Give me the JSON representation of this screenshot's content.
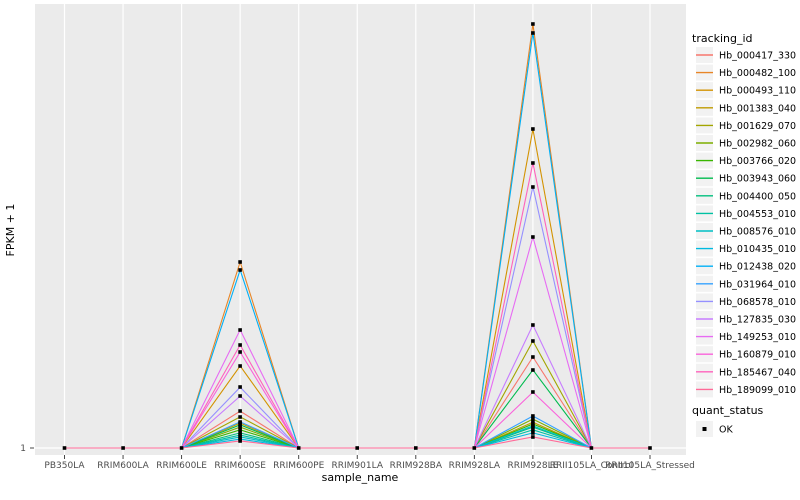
{
  "figure": {
    "background": "#FFFFFF",
    "panel_background": "#EBEBEB",
    "gridline_color": "#FFFFFF",
    "axis_text_color": "#4D4D4D",
    "axis_tick_color": "#333333",
    "point_color": "#000000",
    "legend_key_background": "#F2F2F2"
  },
  "chart_data": {
    "type": "line",
    "title": "",
    "xlabel": "sample_name",
    "ylabel": "FPKM + 1",
    "y_ticks": [
      "1"
    ],
    "y_axis_note": "only baseline tick '1' is labeled; series values stored as fraction of panel height above the y=1 baseline",
    "grid": "vertical white gridlines per sample on gray panel, horizontal gridline at y=1",
    "legend_position": "right",
    "marker": "small filled black square at every sample point",
    "categories": [
      "PB350LA",
      "RRIM600LA",
      "RRIM600LE",
      "RRIM600SE",
      "RRIM600PE",
      "RRIM901LA",
      "RRIM928BA",
      "RRIM928LA",
      "RRIM928LE",
      "RRII105LA_Control",
      "RRII105LA_Stressed"
    ],
    "series": [
      {
        "name": "Hb_000417_330",
        "color": "#F8766D",
        "values": [
          0,
          0,
          0,
          0.083,
          0,
          0,
          0,
          0,
          0.205,
          0,
          0
        ]
      },
      {
        "name": "Hb_000482_100",
        "color": "#E88526",
        "values": [
          0,
          0,
          0,
          0.419,
          0,
          0,
          0,
          0,
          0.955,
          0,
          0
        ]
      },
      {
        "name": "Hb_000493_110",
        "color": "#D39200",
        "values": [
          0,
          0,
          0,
          0.185,
          0,
          0,
          0,
          0,
          0.718,
          0,
          0
        ]
      },
      {
        "name": "Hb_001383_040",
        "color": "#C09B00",
        "values": [
          0,
          0,
          0,
          0.056,
          0,
          0,
          0,
          0,
          0.058,
          0,
          0
        ]
      },
      {
        "name": "Hb_001629_070",
        "color": "#A3A500",
        "values": [
          0,
          0,
          0,
          0.07,
          0,
          0,
          0,
          0,
          0.241,
          0,
          0
        ]
      },
      {
        "name": "Hb_002982_060",
        "color": "#7CAE00",
        "values": [
          0,
          0,
          0,
          0.047,
          0,
          0,
          0,
          0,
          0.065,
          0,
          0
        ]
      },
      {
        "name": "Hb_003766_020",
        "color": "#39B600",
        "values": [
          0,
          0,
          0,
          0.041,
          0,
          0,
          0,
          0,
          0.054,
          0,
          0
        ]
      },
      {
        "name": "Hb_003943_060",
        "color": "#00BB4E",
        "values": [
          0,
          0,
          0,
          0.052,
          0,
          0,
          0,
          0,
          0.176,
          0,
          0
        ]
      },
      {
        "name": "Hb_004400_050",
        "color": "#00BF7D",
        "values": [
          0,
          0,
          0,
          0.034,
          0,
          0,
          0,
          0,
          0.047,
          0,
          0
        ]
      },
      {
        "name": "Hb_004553_010",
        "color": "#00C1A3",
        "values": [
          0,
          0,
          0,
          0.029,
          0,
          0,
          0,
          0,
          0.041,
          0,
          0
        ]
      },
      {
        "name": "Hb_008576_010",
        "color": "#00BFC4",
        "values": [
          0,
          0,
          0,
          0.025,
          0,
          0,
          0,
          0,
          0.05,
          0,
          0
        ]
      },
      {
        "name": "Hb_010435_010",
        "color": "#00BAE0",
        "values": [
          0,
          0,
          0,
          0.02,
          0,
          0,
          0,
          0,
          0.034,
          0,
          0
        ]
      },
      {
        "name": "Hb_012438_020",
        "color": "#00B0F6",
        "values": [
          0,
          0,
          0,
          0.401,
          0,
          0,
          0,
          0,
          0.935,
          0,
          0
        ]
      },
      {
        "name": "Hb_031964_010",
        "color": "#35A2FF",
        "values": [
          0,
          0,
          0,
          0.059,
          0,
          0,
          0,
          0,
          0.072,
          0,
          0
        ]
      },
      {
        "name": "Hb_068578_010",
        "color": "#9590FF",
        "values": [
          0,
          0,
          0,
          0.137,
          0,
          0,
          0,
          0,
          0.588,
          0,
          0
        ]
      },
      {
        "name": "Hb_127835_030",
        "color": "#C77CFF",
        "values": [
          0,
          0,
          0,
          0.117,
          0,
          0,
          0,
          0,
          0.277,
          0,
          0
        ]
      },
      {
        "name": "Hb_149253_010",
        "color": "#E76BF3",
        "values": [
          0,
          0,
          0,
          0.266,
          0,
          0,
          0,
          0,
          0.475,
          0,
          0
        ]
      },
      {
        "name": "Hb_160879_010",
        "color": "#FA62DB",
        "values": [
          0,
          0,
          0,
          0.216,
          0,
          0,
          0,
          0,
          0.126,
          0,
          0
        ]
      },
      {
        "name": "Hb_185467_040",
        "color": "#FF62BC",
        "values": [
          0,
          0,
          0,
          0.232,
          0,
          0,
          0,
          0,
          0.642,
          0,
          0
        ]
      },
      {
        "name": "Hb_189099_010",
        "color": "#FF6A98",
        "values": [
          0,
          0,
          0,
          0.016,
          0,
          0,
          0,
          0,
          0.025,
          0,
          0
        ]
      }
    ],
    "legend": {
      "tracking_id_title": "tracking_id",
      "quant_status_title": "quant_status",
      "quant_status_items": [
        "OK"
      ]
    }
  }
}
